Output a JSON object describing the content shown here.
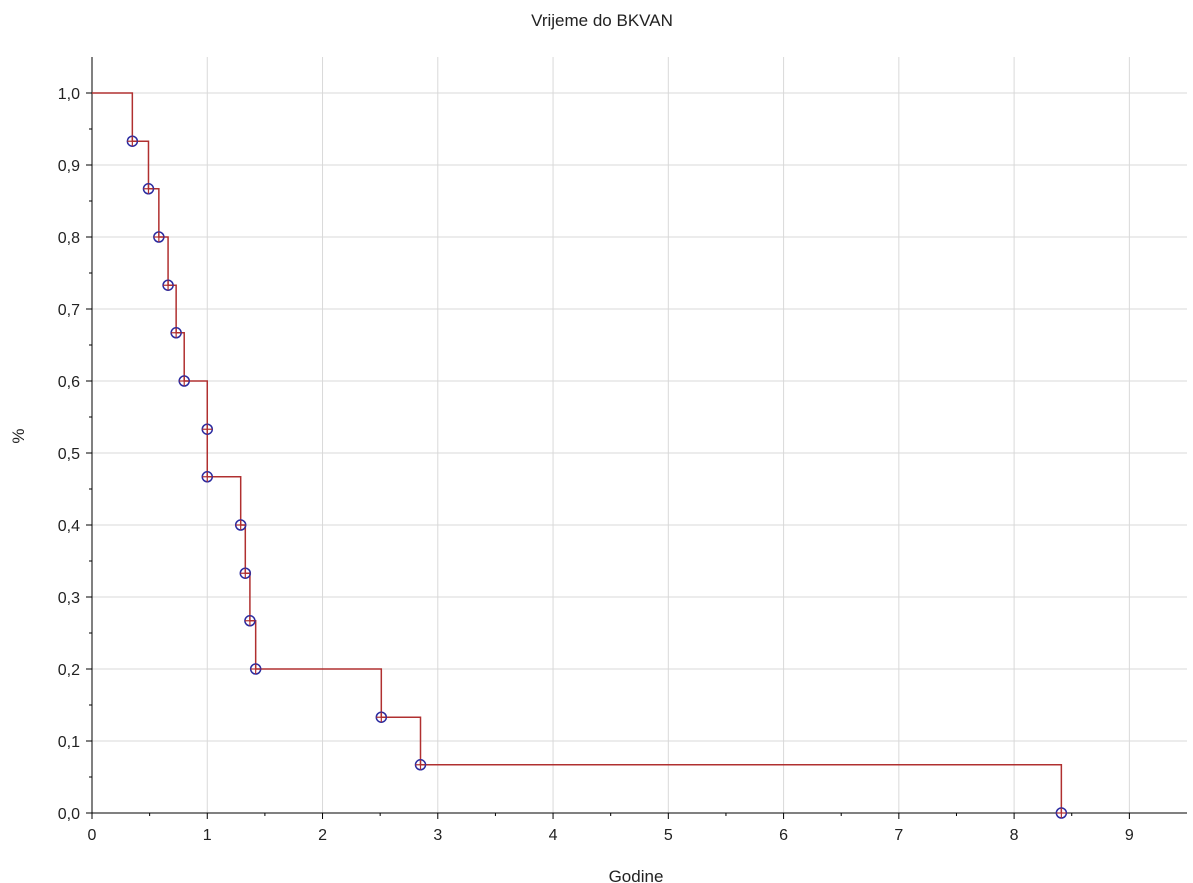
{
  "chart_data": {
    "type": "line",
    "step": true,
    "title": "Vrijeme do BKVAN",
    "xlabel": "Godine",
    "ylabel": "%",
    "xlim": [
      0,
      9.5
    ],
    "ylim": [
      0,
      1.05
    ],
    "x_ticks": [
      0,
      1,
      2,
      3,
      4,
      5,
      6,
      7,
      8,
      9
    ],
    "x_tick_labels": [
      "0",
      "1",
      "2",
      "3",
      "4",
      "5",
      "6",
      "7",
      "8",
      "9"
    ],
    "y_ticks": [
      0,
      0.1,
      0.2,
      0.3,
      0.4,
      0.5,
      0.6,
      0.7,
      0.8,
      0.9,
      1.0
    ],
    "y_tick_labels": [
      "0,0",
      "0,1",
      "0,2",
      "0,3",
      "0,4",
      "0,5",
      "0,6",
      "0,7",
      "0,8",
      "0,9",
      "1,0"
    ],
    "grid": true,
    "line_color": "#b03030",
    "marker_color": "#2a2aa0",
    "series": [
      {
        "start": [
          0,
          1.0
        ],
        "events": [
          {
            "x": 0.35,
            "y": 0.933
          },
          {
            "x": 0.49,
            "y": 0.867
          },
          {
            "x": 0.58,
            "y": 0.8
          },
          {
            "x": 0.66,
            "y": 0.733
          },
          {
            "x": 0.73,
            "y": 0.667
          },
          {
            "x": 0.8,
            "y": 0.6
          },
          {
            "x": 1.0,
            "y": 0.533
          },
          {
            "x": 1.0,
            "y": 0.467
          },
          {
            "x": 1.29,
            "y": 0.4
          },
          {
            "x": 1.33,
            "y": 0.333
          },
          {
            "x": 1.37,
            "y": 0.267
          },
          {
            "x": 1.42,
            "y": 0.2
          },
          {
            "x": 2.51,
            "y": 0.133
          },
          {
            "x": 2.85,
            "y": 0.067
          },
          {
            "x": 8.41,
            "y": 0.0
          }
        ]
      }
    ]
  }
}
